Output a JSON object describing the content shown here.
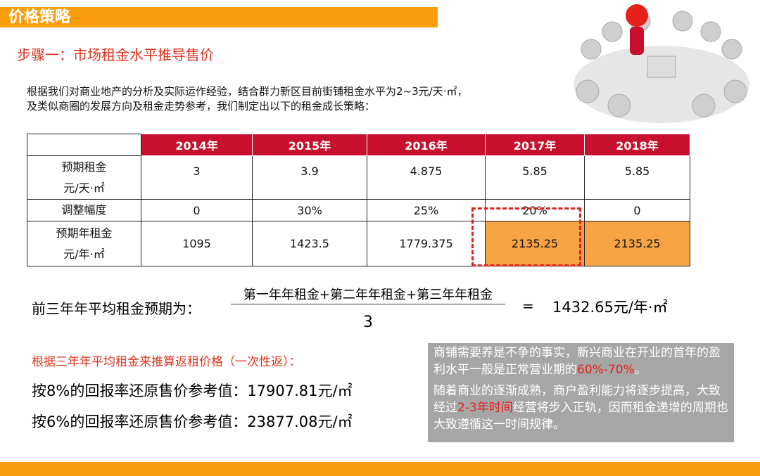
{
  "header": {
    "title": "价格策略"
  },
  "subtitle": "步骤一：市场租金水平推导售价",
  "intro": [
    "根据我们对商业地产的分析及实际运作经验，结合群力新区目前街铺租金水平为2~3元/天·㎡，",
    "及类似商圈的发展方向及租金走势参考，我们制定出以下的租金成长策略："
  ],
  "table": {
    "header": [
      "2014年",
      "2015年",
      "2016年",
      "2017年",
      "2018年"
    ],
    "rows": [
      {
        "label": [
          "预期租金",
          "元/天·㎡"
        ],
        "cells": [
          "3",
          "3.9",
          "4.875",
          "5.85",
          "5.85"
        ]
      },
      {
        "label": [
          "调整幅度"
        ],
        "cells": [
          "0",
          "30%",
          "25%",
          "20%",
          "0"
        ]
      },
      {
        "label": [
          "预期年租金",
          "元/年·㎡"
        ],
        "cells": [
          "1095",
          "1423.5",
          "1779.375",
          "2135.25",
          "2135.25"
        ]
      }
    ]
  },
  "formula": {
    "lead": "前三年年平均租金预期为：",
    "numerator": "第一年年租金+第二年年租金+第三年年租金",
    "denominator": "3",
    "equals": "=",
    "result": "1432.65元/年·㎡"
  },
  "pricing": {
    "heading": "根据三年年平均租金来推算返租价格（一次性返）：",
    "lines": [
      "按8%的回报率还原售价参考值：17907.81元/㎡",
      "按6%的回报率还原售价参考值：23877.08元/㎡"
    ]
  },
  "note": {
    "paragraphs": [
      [
        "商铺需要养是不争的事实，新兴商业在开业的首年的盈利水平一般是正常营业期的",
        "60%-70%",
        "。"
      ],
      [
        "随着商业的逐渐成熟，商户盈利能力将逐步提高，大致经过",
        "2-3年时间",
        "经营将步入正轨，因而租金递增的周期也大致遵循这一时间规律。"
      ]
    ]
  }
}
